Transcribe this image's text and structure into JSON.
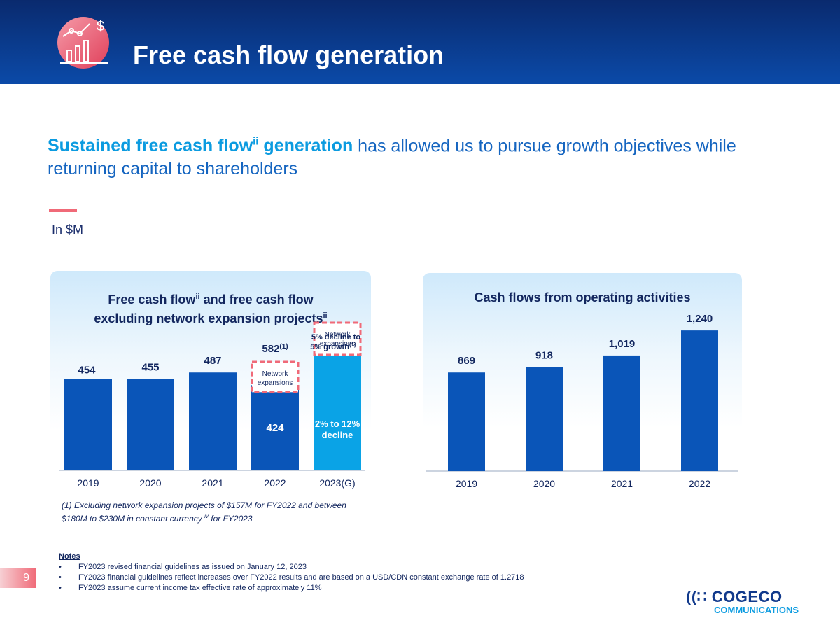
{
  "header": {
    "title": "Free cash flow generation"
  },
  "headline": {
    "highlight_prefix": "Sustained free cash flow",
    "highlight_sup": "ii",
    "highlight_suffix": " generation",
    "rest": " has allowed us to pursue growth objectives while returning capital to shareholders"
  },
  "unit_label": "In $M",
  "colors": {
    "bar_dark": "#0a55b8",
    "bar_light": "#0aa3e6",
    "dashed_box": "#f06a78",
    "header_bg": "#0b3a8a"
  },
  "chart_data": [
    {
      "type": "bar",
      "title_line1": "Free cash flow",
      "title_line1_sup": "ii",
      "title_line1_rest": " and free cash flow",
      "title_line2": "excluding network expansion projects",
      "title_line2_sup": "ii",
      "categories": [
        "2019",
        "2020",
        "2021",
        "2022",
        "2023(G)"
      ],
      "values": [
        454,
        455,
        487,
        424,
        null
      ],
      "total_2022": 582,
      "data_labels": [
        "454",
        "455",
        "487",
        "424",
        "2% to 12% decline"
      ],
      "top_labels": {
        "2022": "582",
        "2022_sup": "(1)",
        "2023(G)": "5% decline to 5% growth",
        "2023(G)_sup": "(1)"
      },
      "box_label": "Network expansions",
      "guidance_range": [
        "2% to 12% decline",
        "5% decline to 5% growth"
      ],
      "ylim": [
        0,
        700
      ]
    },
    {
      "type": "bar",
      "title": "Cash flows from operating activities",
      "categories": [
        "2019",
        "2020",
        "2021",
        "2022"
      ],
      "values": [
        869,
        918,
        1019,
        1240
      ],
      "data_labels": [
        "869",
        "918",
        "1,019",
        "1,240"
      ],
      "ylim": [
        0,
        1450
      ]
    }
  ],
  "footnote": "(1) Excluding network expansion projects of $157M for FY2022 and between $180M to $230M in constant currency",
  "footnote_sup": "iv",
  "footnote_end": " for FY2023",
  "notes": {
    "title": "Notes",
    "items": [
      "FY2023 revised financial guidelines as issued on January 12, 2023",
      "FY2023 financial guidelines reflect increases over FY2022 results and are based on a USD/CDN constant exchange rate of 1.2718",
      "FY2023 assume current income tax effective rate of approximately 11%"
    ]
  },
  "page_number": "9",
  "brand": {
    "name": "COGECO",
    "sub": "COMMUNICATIONS"
  }
}
